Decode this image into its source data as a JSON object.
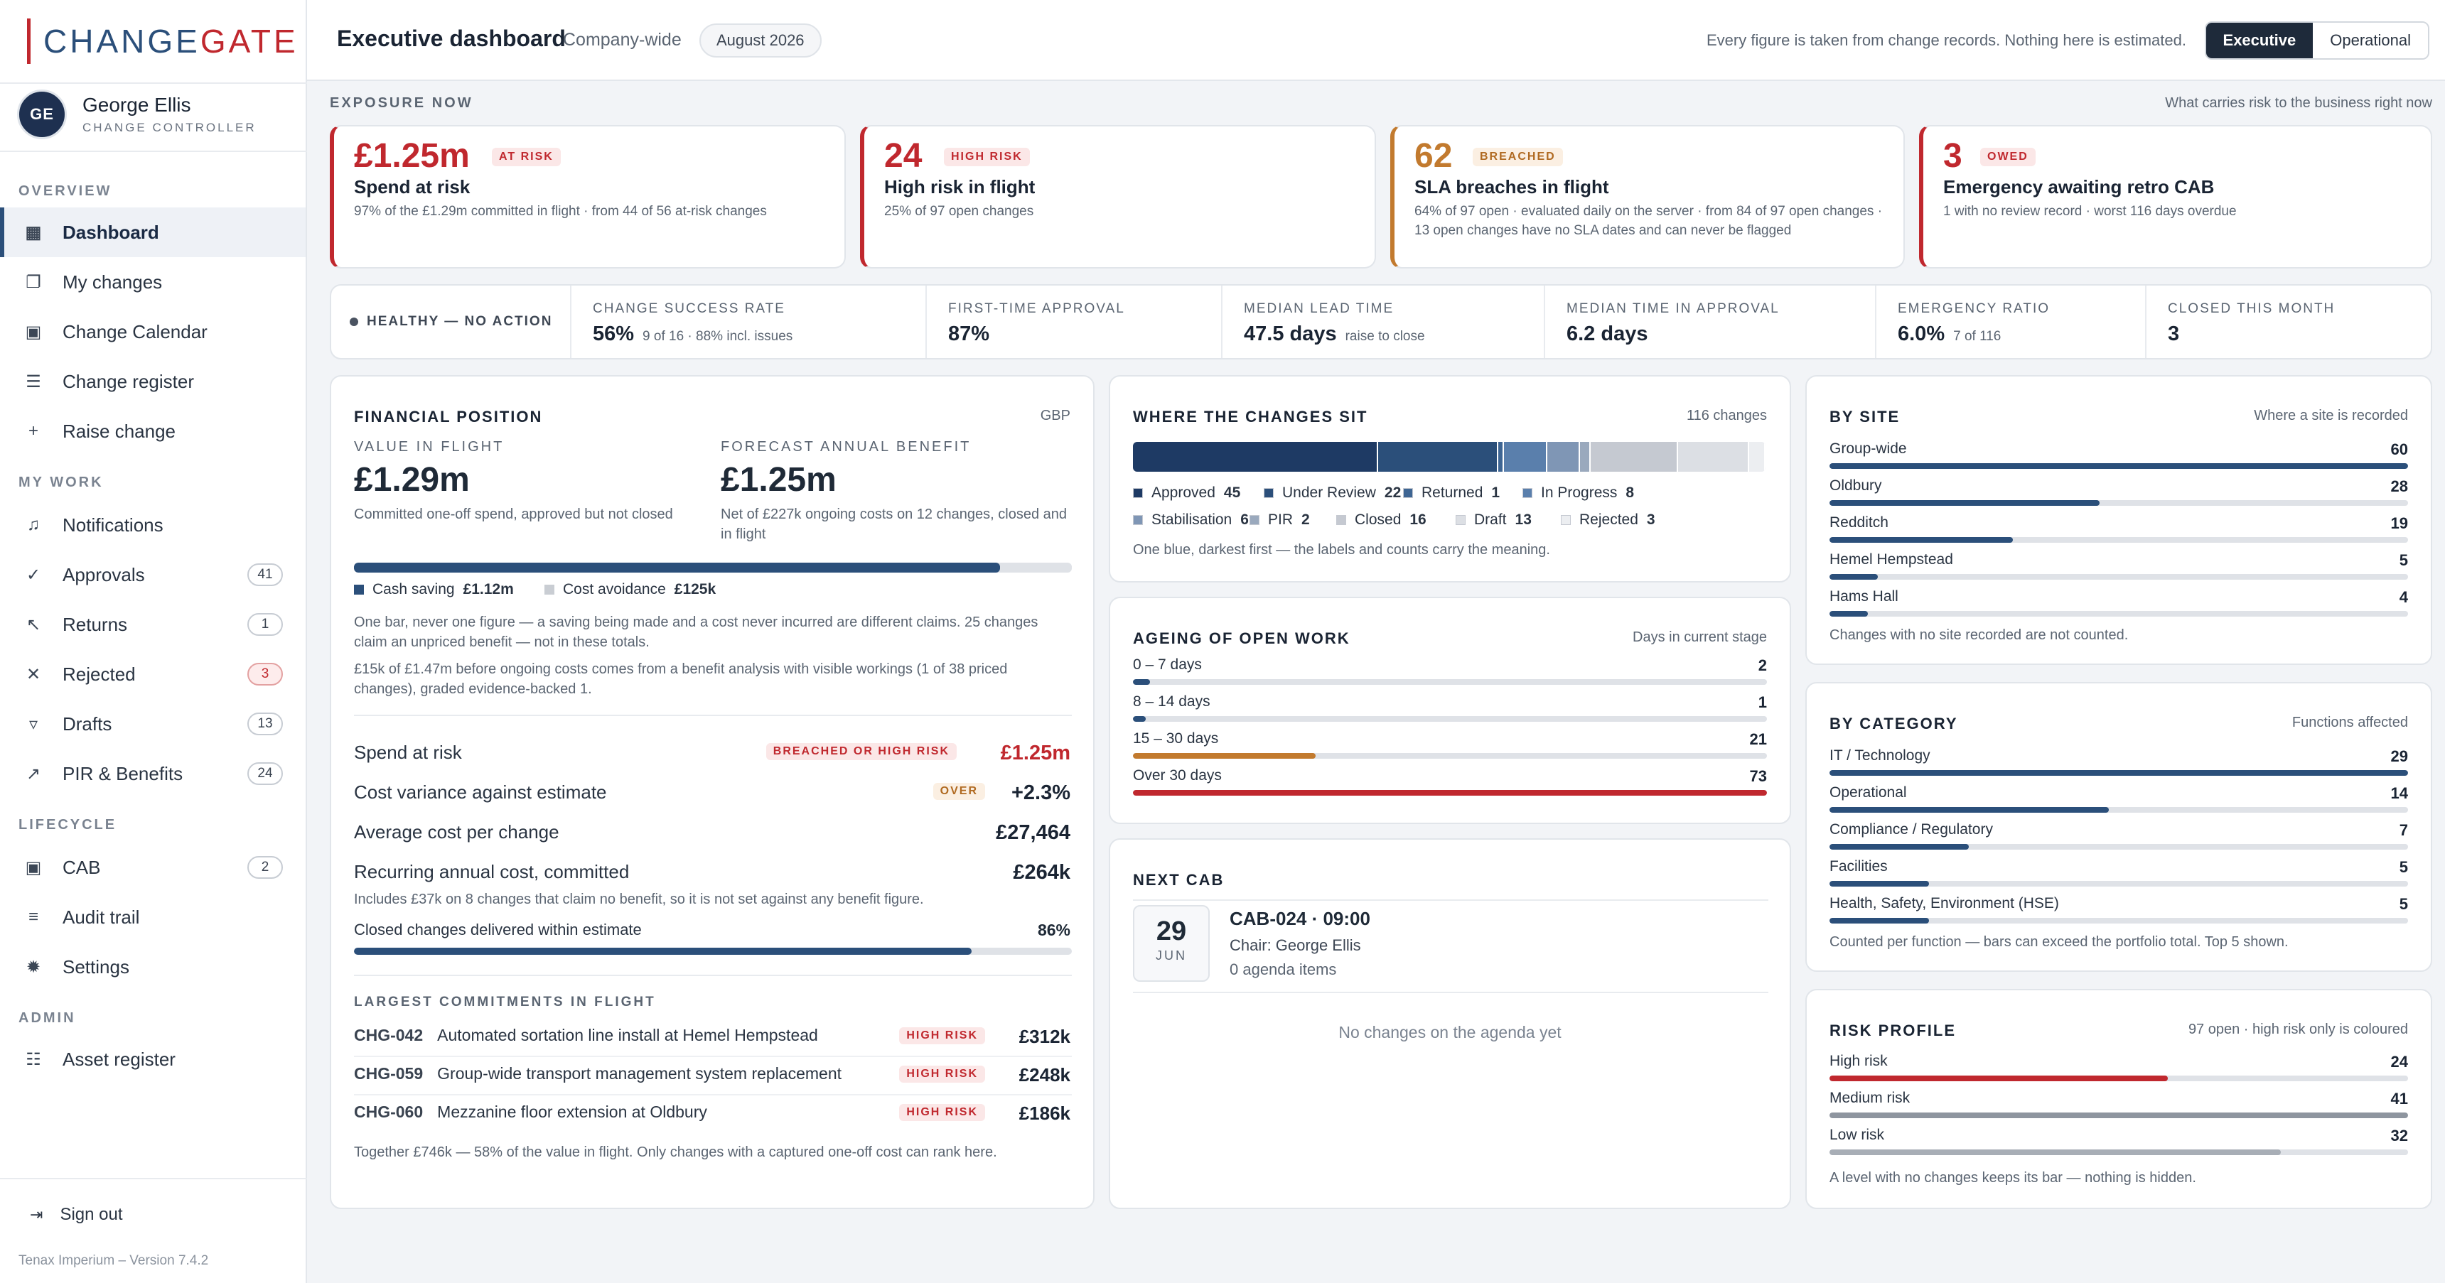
{
  "app": {
    "logo_a": "CHANGE",
    "logo_b": "GATE",
    "version": "Tenax Imperium – Version 7.4.2"
  },
  "user": {
    "initials": "GE",
    "name": "George Ellis",
    "role": "CHANGE CONTROLLER"
  },
  "nav": {
    "sections": [
      "OVERVIEW",
      "MY WORK",
      "LIFECYCLE",
      "ADMIN"
    ],
    "items": [
      {
        "label": "Dashboard",
        "icon": "grid-icon"
      },
      {
        "label": "My changes",
        "icon": "layers-icon"
      },
      {
        "label": "Change Calendar",
        "icon": "calendar-icon"
      },
      {
        "label": "Change register",
        "icon": "register-icon"
      },
      {
        "label": "Raise change",
        "icon": "plus-icon"
      },
      {
        "label": "Notifications",
        "icon": "bell-icon"
      },
      {
        "label": "Approvals",
        "icon": "check-icon",
        "badge": "41"
      },
      {
        "label": "Returns",
        "icon": "return-arrow-icon",
        "badge": "1"
      },
      {
        "label": "Rejected",
        "icon": "x-icon",
        "badge": "3"
      },
      {
        "label": "Drafts",
        "icon": "funnel-icon",
        "badge": "13"
      },
      {
        "label": "PIR & Benefits",
        "icon": "trend-icon",
        "badge": "24"
      },
      {
        "label": "CAB",
        "icon": "calendar-icon",
        "badge": "2"
      },
      {
        "label": "Audit trail",
        "icon": "lines-icon"
      },
      {
        "label": "Settings",
        "icon": "gear-icon"
      },
      {
        "label": "Asset register",
        "icon": "database-icon"
      }
    ],
    "signout": "Sign out"
  },
  "header": {
    "title": "Executive dashboard",
    "scope": "Company-wide",
    "period": "August 2026",
    "note": "Every figure is taken from change records. Nothing here is estimated.",
    "views": [
      "Executive",
      "Operational"
    ]
  },
  "exposure": {
    "label": "EXPOSURE NOW",
    "note": "What carries risk to the business right now",
    "cards": [
      {
        "value": "£1.25m",
        "tag": "AT RISK",
        "title": "Spend at risk",
        "sub": "97% of the £1.29m committed in flight · from 44 of 56 at-risk changes"
      },
      {
        "value": "24",
        "tag": "HIGH RISK",
        "title": "High risk in flight",
        "sub": "25% of 97 open changes"
      },
      {
        "value": "62",
        "tag": "BREACHED",
        "title": "SLA breaches in flight",
        "sub": "64% of 97 open · evaluated daily on the server · from 84 of 97 open changes · 13 open changes have no SLA dates and can never be flagged"
      },
      {
        "value": "3",
        "tag": "OWED",
        "title": "Emergency awaiting retro CAB",
        "sub": "1 with no review record · worst 116 days overdue"
      }
    ]
  },
  "kpis": {
    "health": "HEALTHY — NO ACTION",
    "items": [
      {
        "cap": "CHANGE SUCCESS RATE",
        "val": "56%",
        "sub": "9 of 16 · 88% incl. issues"
      },
      {
        "cap": "FIRST-TIME APPROVAL",
        "val": "87%",
        "sub": ""
      },
      {
        "cap": "MEDIAN LEAD TIME",
        "val": "47.5 days",
        "sub": "raise to close"
      },
      {
        "cap": "MEDIAN TIME IN APPROVAL",
        "val": "6.2 days",
        "sub": ""
      },
      {
        "cap": "EMERGENCY RATIO",
        "val": "6.0%",
        "sub": "7 of 116"
      },
      {
        "cap": "CLOSED THIS MONTH",
        "val": "3",
        "sub": ""
      }
    ]
  },
  "financial": {
    "title": "FINANCIAL POSITION",
    "currency": "GBP",
    "vif_label": "VALUE IN FLIGHT",
    "vif": "£1.29m",
    "vif_sub": "Committed one-off spend, approved but not closed",
    "fab_label": "FORECAST ANNUAL BENEFIT",
    "fab": "£1.25m",
    "fab_sub": "Net of £227k ongoing costs on 12 changes, closed and in flight",
    "benefit_fraction": 0.9,
    "cash_label": "Cash saving",
    "cash": "£1.12m",
    "avoid_label": "Cost avoidance",
    "avoid": "£125k",
    "note1": "One bar, never one figure — a saving being made and a cost never incurred are different claims. 25 changes claim an unpriced benefit — not in these totals.",
    "note2": "£15k of £1.47m before ongoing costs comes from a benefit analysis with visible workings (1 of 38 priced changes), graded evidence-backed 1.",
    "rows": [
      {
        "label": "Spend at risk",
        "tag": "BREACHED OR HIGH RISK",
        "val": "£1.25m"
      },
      {
        "label": "Cost variance against estimate",
        "tag": "OVER",
        "val": "+2.3%"
      },
      {
        "label": "Average cost per change",
        "val": "£27,464"
      },
      {
        "label": "Recurring annual cost, committed",
        "val": "£264k"
      }
    ],
    "recurring_note": "Includes £37k on 8 changes that claim no benefit, so it is not set against any benefit figure.",
    "delivered_label": "Closed changes delivered within estimate",
    "delivered": "86%",
    "delivered_fraction": 0.86,
    "largest_label": "LARGEST COMMITMENTS IN FLIGHT",
    "largest": [
      {
        "id": "CHG-042",
        "name": "Automated sortation line install at Hemel Hempstead",
        "tag": "HIGH RISK",
        "val": "£312k"
      },
      {
        "id": "CHG-059",
        "name": "Group-wide transport management system replacement",
        "tag": "HIGH RISK",
        "val": "£248k"
      },
      {
        "id": "CHG-060",
        "name": "Mezzanine floor extension at Oldbury",
        "tag": "HIGH RISK",
        "val": "£186k"
      }
    ],
    "largest_note": "Together £746k — 58% of the value in flight. Only changes with a captured one-off cost can rank here."
  },
  "where": {
    "title": "WHERE THE CHANGES SIT",
    "total": "116 changes",
    "note": "One blue, darkest first — the labels and counts carry the meaning.",
    "segments": [
      {
        "name": "Approved",
        "count": 45,
        "color": "#1e3a64"
      },
      {
        "name": "Under Review",
        "count": 22,
        "color": "#2b4f7a"
      },
      {
        "name": "Returned",
        "count": 1,
        "color": "#3e6593"
      },
      {
        "name": "In Progress",
        "count": 8,
        "color": "#5a7fac"
      },
      {
        "name": "Stabilisation",
        "count": 6,
        "color": "#7f96b5"
      },
      {
        "name": "PIR",
        "count": 2,
        "color": "#9aa9bd"
      },
      {
        "name": "Closed",
        "count": 16,
        "color": "#c5c9d1"
      },
      {
        "name": "Draft",
        "count": 13,
        "color": "#dcdfe4"
      },
      {
        "name": "Rejected",
        "count": 3,
        "color": "#eceef1"
      }
    ]
  },
  "ageing": {
    "title": "AGEING OF OPEN WORK",
    "note": "Days in current stage",
    "max": 73,
    "items": [
      {
        "label": "0 – 7 days",
        "count": 2,
        "color": "#2b4f7a"
      },
      {
        "label": "8 – 14 days",
        "count": 1,
        "color": "#2b4f7a"
      },
      {
        "label": "15 – 30 days",
        "count": 21,
        "color": "#c27a2e"
      },
      {
        "label": "Over 30 days",
        "count": 73,
        "color": "#c0282e"
      }
    ]
  },
  "cab": {
    "title": "NEXT CAB",
    "day": "29",
    "month": "JUN",
    "name": "CAB-024 · 09:00",
    "chair": "Chair: George Ellis",
    "items": "0 agenda items",
    "empty": "No changes on the agenda yet"
  },
  "site": {
    "title": "BY SITE",
    "note": "Where a site is recorded",
    "max": 60,
    "items": [
      {
        "label": "Group-wide",
        "count": 60
      },
      {
        "label": "Oldbury",
        "count": 28
      },
      {
        "label": "Redditch",
        "count": 19
      },
      {
        "label": "Hemel Hempstead",
        "count": 5
      },
      {
        "label": "Hams Hall",
        "count": 4
      }
    ],
    "foot": "Changes with no site recorded are not counted."
  },
  "category": {
    "title": "BY CATEGORY",
    "note": "Functions affected",
    "max": 29,
    "items": [
      {
        "label": "IT / Technology",
        "count": 29
      },
      {
        "label": "Operational",
        "count": 14
      },
      {
        "label": "Compliance / Regulatory",
        "count": 7
      },
      {
        "label": "Facilities",
        "count": 5
      },
      {
        "label": "Health, Safety, Environment (HSE)",
        "count": 5
      }
    ],
    "foot": "Counted per function — bars can exceed the portfolio total. Top 5 shown."
  },
  "risk": {
    "title": "RISK PROFILE",
    "note": "97 open · high risk only is coloured",
    "max": 41,
    "items": [
      {
        "label": "High risk",
        "count": 24,
        "color": "#c0282e"
      },
      {
        "label": "Medium risk",
        "count": 41,
        "color": "#8e959f"
      },
      {
        "label": "Low risk",
        "count": 32,
        "color": "#a8aeb6"
      }
    ],
    "foot": "A level with no changes keeps its bar — nothing is hidden."
  },
  "colors": {
    "accent": "#2b4f7a",
    "danger": "#c0282e",
    "amber": "#c27a2e"
  }
}
